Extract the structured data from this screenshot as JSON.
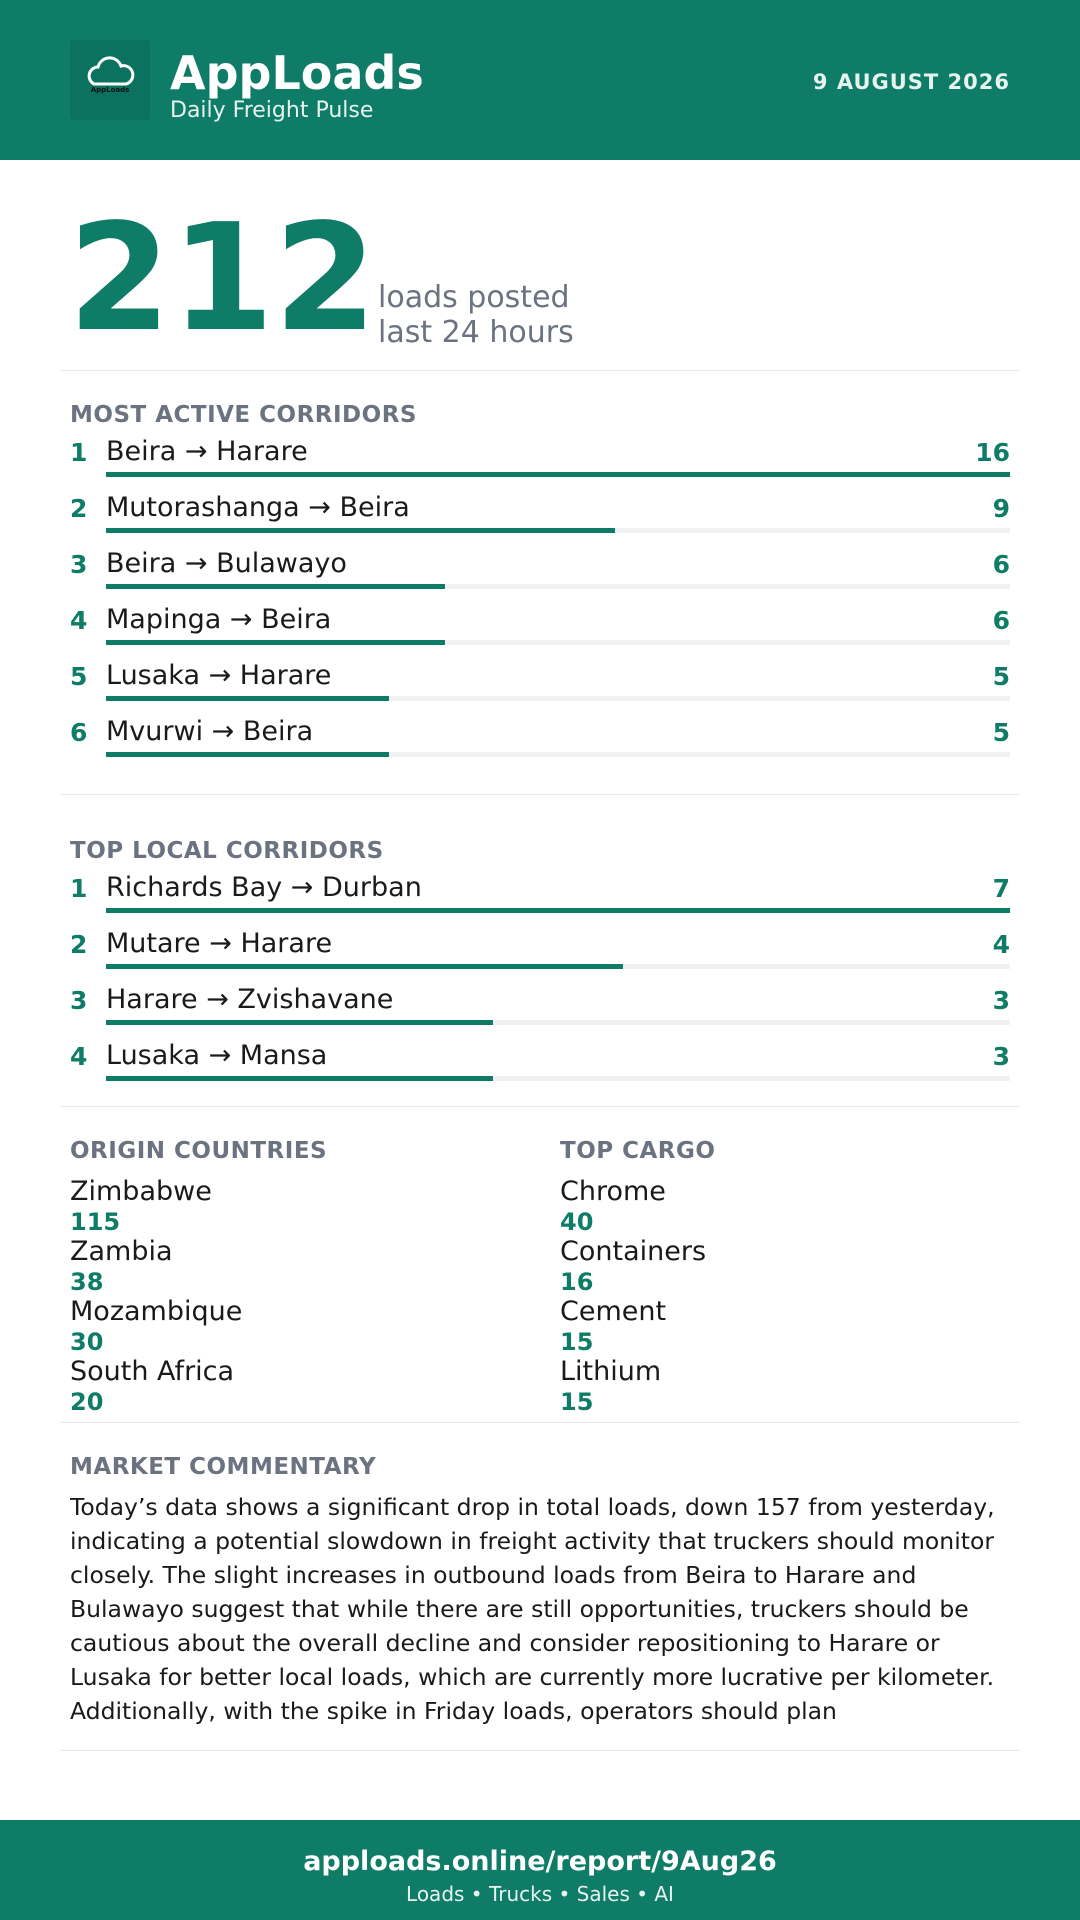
{
  "header": {
    "logo_text": "AppLoads",
    "title": "AppLoads",
    "subtitle": "Daily Freight Pulse",
    "date": "9 AUGUST 2026"
  },
  "hero": {
    "value": 212,
    "label_line1": "loads posted",
    "label_line2": "last 24 hours"
  },
  "most_active": {
    "title": "MOST ACTIVE CORRIDORS",
    "items": [
      {
        "rank": 1,
        "route": "Beira → Harare",
        "loads": 16
      },
      {
        "rank": 2,
        "route": "Mutorashanga → Beira",
        "loads": 9
      },
      {
        "rank": 3,
        "route": "Beira → Bulawayo",
        "loads": 6
      },
      {
        "rank": 4,
        "route": "Mapinga → Beira",
        "loads": 6
      },
      {
        "rank": 5,
        "route": "Lusaka → Harare",
        "loads": 5
      },
      {
        "rank": 6,
        "route": "Mvurwi → Beira",
        "loads": 5
      }
    ]
  },
  "top_local": {
    "title": "TOP LOCAL CORRIDORS",
    "items": [
      {
        "rank": 1,
        "route": "Richards Bay → Durban",
        "loads": 7
      },
      {
        "rank": 2,
        "route": "Mutare → Harare",
        "loads": 4
      },
      {
        "rank": 3,
        "route": "Harare → Zvishavane",
        "loads": 3
      },
      {
        "rank": 4,
        "route": "Lusaka → Mansa",
        "loads": 3
      }
    ]
  },
  "origin_countries": {
    "title": "ORIGIN COUNTRIES",
    "items": [
      {
        "name": "Zimbabwe",
        "loads": 115
      },
      {
        "name": "Zambia",
        "loads": 38
      },
      {
        "name": "Mozambique",
        "loads": 30
      },
      {
        "name": "South Africa",
        "loads": 20
      }
    ]
  },
  "top_cargo": {
    "title": "TOP CARGO",
    "items": [
      {
        "name": "Chrome",
        "loads": 40
      },
      {
        "name": "Containers",
        "loads": 16
      },
      {
        "name": "Cement",
        "loads": 15
      },
      {
        "name": "Lithium",
        "loads": 15
      }
    ]
  },
  "commentary": {
    "title": "MARKET COMMENTARY",
    "text": "Today’s data shows a significant drop in total loads, down 157 from yesterday, indicating a potential slowdown in freight activity that truckers should monitor closely. The slight increases in outbound loads from Beira to Harare and Bulawayo suggest that while there are still opportunities, truckers should be cautious about the overall decline and consider repositioning to Harare or Lusaka for better local loads, which are currently more lucrative per kilometer. Additionally, with the spike in Friday loads, operators should plan"
  },
  "footer": {
    "url": "apploads.online/report/9Aug26",
    "tagline": "Loads • Trucks • Sales • AI"
  }
}
